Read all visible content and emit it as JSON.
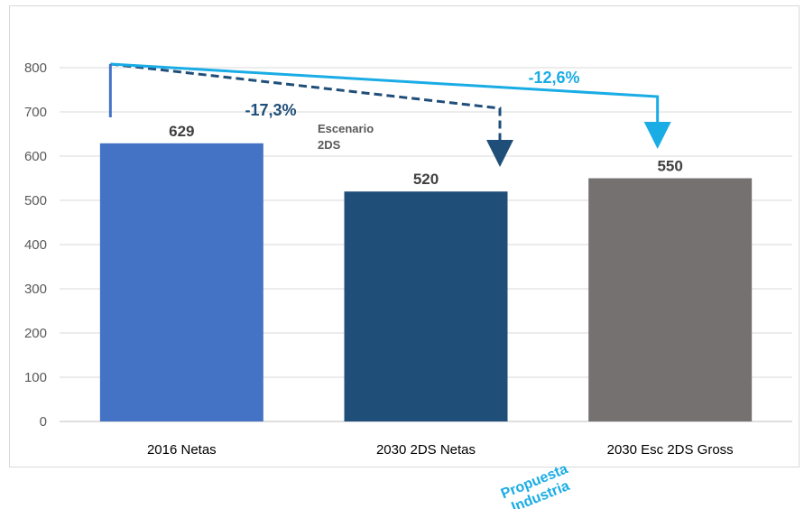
{
  "chart_data": {
    "type": "bar",
    "categories": [
      "2016 Netas",
      "2030 2DS Netas",
      "2030 Esc 2DS Gross"
    ],
    "values": [
      629,
      520,
      550
    ],
    "value_labels": [
      "629",
      "520",
      "550"
    ],
    "colors": [
      "#4472c4",
      "#1f4e79",
      "#767171"
    ],
    "ylim": [
      0,
      800
    ],
    "yticks": [
      0,
      100,
      200,
      300,
      400,
      500,
      600,
      700,
      800
    ],
    "grid": true,
    "annotations": {
      "change_2ds": {
        "text": "-17,3%",
        "color": "#1f4e79",
        "style": "dashed"
      },
      "change_gross": {
        "text": "-12,6%",
        "color": "#1aace5",
        "style": "solid"
      },
      "scenario_note": [
        "Escenario",
        "2DS"
      ],
      "proposal_note": [
        "Propuesta",
        "Industria"
      ]
    }
  }
}
